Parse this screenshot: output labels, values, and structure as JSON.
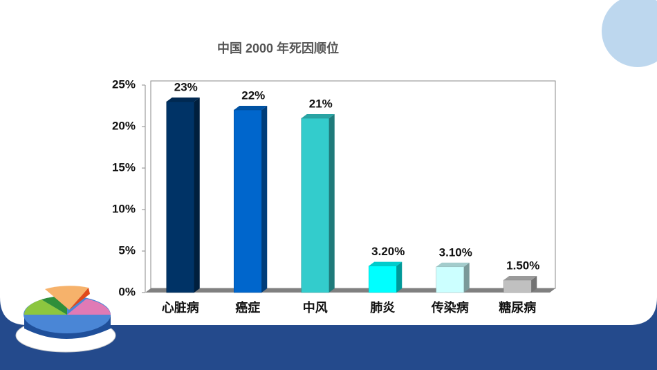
{
  "chart_data": {
    "type": "bar3d",
    "title": "中国 2000 年死因顺位",
    "categories": [
      "心脏病",
      "癌症",
      "中风",
      "肺炎",
      "传染病",
      "糖尿病"
    ],
    "values": [
      23,
      22,
      21,
      3.2,
      3.1,
      1.5
    ],
    "value_labels": [
      "23%",
      "22%",
      "21%",
      "3.20%",
      "3.10%",
      "1.50%"
    ],
    "colors": [
      "#003366",
      "#0066cc",
      "#33cccc",
      "#00ffff",
      "#ccffff",
      "#c0c0c0"
    ],
    "ylim": [
      0,
      25
    ],
    "yticks": [
      {
        "value": 0,
        "label": "0%"
      },
      {
        "value": 5,
        "label": "5%"
      },
      {
        "value": 10,
        "label": "10%"
      },
      {
        "value": 15,
        "label": "15%"
      },
      {
        "value": 20,
        "label": "20%"
      },
      {
        "value": 25,
        "label": "25%"
      }
    ],
    "grid": false
  }
}
